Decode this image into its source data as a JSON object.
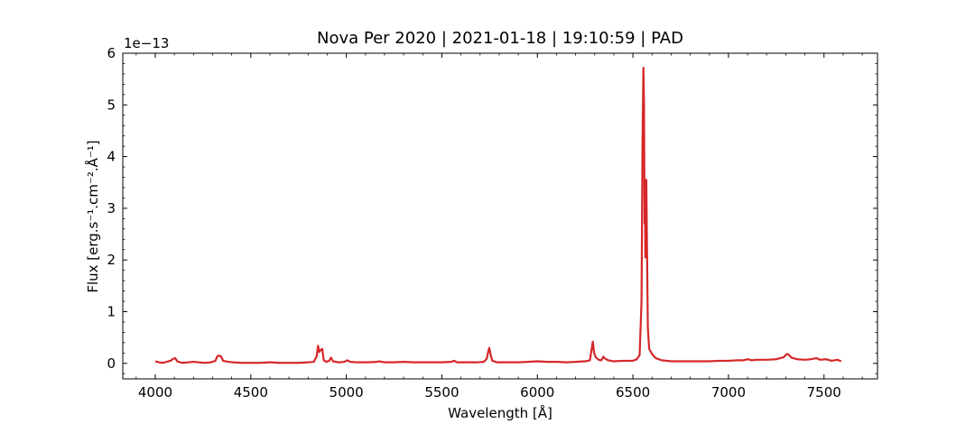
{
  "chart_data": {
    "type": "line",
    "title": "Nova Per 2020 | 2021-01-18 | 19:10:59 | PAD",
    "xlabel": "Wavelength [Å]",
    "ylabel": "Flux [erg.s⁻¹.cm⁻².Å⁻¹]",
    "y_offset_label": "1e−13",
    "xlim": [
      3830,
      7780
    ],
    "ylim": [
      -0.3,
      6.0
    ],
    "xticks": [
      4000,
      4500,
      5000,
      5500,
      6000,
      6500,
      7000,
      7500
    ],
    "yticks": [
      0,
      1,
      2,
      3,
      4,
      5,
      6
    ],
    "grid": false,
    "series": [
      {
        "color": "#d62728",
        "points": [
          [
            4000,
            0.04
          ],
          [
            4020,
            0.02
          ],
          [
            4040,
            0.01
          ],
          [
            4060,
            0.03
          ],
          [
            4080,
            0.05
          ],
          [
            4095,
            0.09
          ],
          [
            4105,
            0.1
          ],
          [
            4115,
            0.04
          ],
          [
            4140,
            0.01
          ],
          [
            4170,
            0.02
          ],
          [
            4200,
            0.03
          ],
          [
            4230,
            0.02
          ],
          [
            4260,
            0.01
          ],
          [
            4290,
            0.02
          ],
          [
            4315,
            0.05
          ],
          [
            4325,
            0.14
          ],
          [
            4335,
            0.15
          ],
          [
            4345,
            0.13
          ],
          [
            4355,
            0.05
          ],
          [
            4380,
            0.03
          ],
          [
            4410,
            0.02
          ],
          [
            4450,
            0.01
          ],
          [
            4500,
            0.01
          ],
          [
            4550,
            0.01
          ],
          [
            4600,
            0.02
          ],
          [
            4650,
            0.01
          ],
          [
            4700,
            0.01
          ],
          [
            4750,
            0.01
          ],
          [
            4800,
            0.02
          ],
          [
            4830,
            0.03
          ],
          [
            4845,
            0.14
          ],
          [
            4852,
            0.34
          ],
          [
            4858,
            0.22
          ],
          [
            4866,
            0.26
          ],
          [
            4874,
            0.28
          ],
          [
            4882,
            0.06
          ],
          [
            4895,
            0.03
          ],
          [
            4910,
            0.05
          ],
          [
            4920,
            0.11
          ],
          [
            4930,
            0.04
          ],
          [
            4960,
            0.02
          ],
          [
            4990,
            0.03
          ],
          [
            5005,
            0.06
          ],
          [
            5020,
            0.03
          ],
          [
            5060,
            0.02
          ],
          [
            5110,
            0.02
          ],
          [
            5160,
            0.03
          ],
          [
            5170,
            0.04
          ],
          [
            5200,
            0.02
          ],
          [
            5250,
            0.02
          ],
          [
            5300,
            0.03
          ],
          [
            5350,
            0.02
          ],
          [
            5400,
            0.02
          ],
          [
            5450,
            0.02
          ],
          [
            5500,
            0.02
          ],
          [
            5550,
            0.03
          ],
          [
            5565,
            0.05
          ],
          [
            5580,
            0.02
          ],
          [
            5620,
            0.02
          ],
          [
            5680,
            0.02
          ],
          [
            5720,
            0.03
          ],
          [
            5735,
            0.09
          ],
          [
            5742,
            0.22
          ],
          [
            5748,
            0.3
          ],
          [
            5755,
            0.17
          ],
          [
            5764,
            0.05
          ],
          [
            5790,
            0.02
          ],
          [
            5850,
            0.02
          ],
          [
            5900,
            0.02
          ],
          [
            5950,
            0.03
          ],
          [
            6000,
            0.04
          ],
          [
            6050,
            0.03
          ],
          [
            6100,
            0.03
          ],
          [
            6150,
            0.02
          ],
          [
            6200,
            0.03
          ],
          [
            6250,
            0.04
          ],
          [
            6275,
            0.06
          ],
          [
            6283,
            0.25
          ],
          [
            6290,
            0.42
          ],
          [
            6297,
            0.2
          ],
          [
            6305,
            0.12
          ],
          [
            6320,
            0.07
          ],
          [
            6335,
            0.06
          ],
          [
            6345,
            0.13
          ],
          [
            6355,
            0.09
          ],
          [
            6370,
            0.06
          ],
          [
            6400,
            0.04
          ],
          [
            6450,
            0.05
          ],
          [
            6500,
            0.05
          ],
          [
            6520,
            0.08
          ],
          [
            6535,
            0.16
          ],
          [
            6545,
            1.2
          ],
          [
            6550,
            4.2
          ],
          [
            6555,
            5.72
          ],
          [
            6558,
            5.0
          ],
          [
            6561,
            2.7
          ],
          [
            6563,
            3.4
          ],
          [
            6565,
            2.05
          ],
          [
            6567,
            2.7
          ],
          [
            6570,
            3.55
          ],
          [
            6573,
            2.5
          ],
          [
            6578,
            0.7
          ],
          [
            6585,
            0.28
          ],
          [
            6600,
            0.18
          ],
          [
            6620,
            0.1
          ],
          [
            6650,
            0.06
          ],
          [
            6700,
            0.04
          ],
          [
            6750,
            0.04
          ],
          [
            6800,
            0.04
          ],
          [
            6850,
            0.04
          ],
          [
            6900,
            0.04
          ],
          [
            6950,
            0.05
          ],
          [
            7000,
            0.05
          ],
          [
            7050,
            0.06
          ],
          [
            7080,
            0.06
          ],
          [
            7100,
            0.08
          ],
          [
            7120,
            0.06
          ],
          [
            7150,
            0.07
          ],
          [
            7200,
            0.07
          ],
          [
            7250,
            0.08
          ],
          [
            7290,
            0.12
          ],
          [
            7305,
            0.18
          ],
          [
            7315,
            0.17
          ],
          [
            7330,
            0.11
          ],
          [
            7360,
            0.08
          ],
          [
            7400,
            0.07
          ],
          [
            7430,
            0.08
          ],
          [
            7460,
            0.1
          ],
          [
            7480,
            0.07
          ],
          [
            7510,
            0.08
          ],
          [
            7540,
            0.05
          ],
          [
            7570,
            0.07
          ],
          [
            7590,
            0.04
          ]
        ]
      }
    ]
  }
}
